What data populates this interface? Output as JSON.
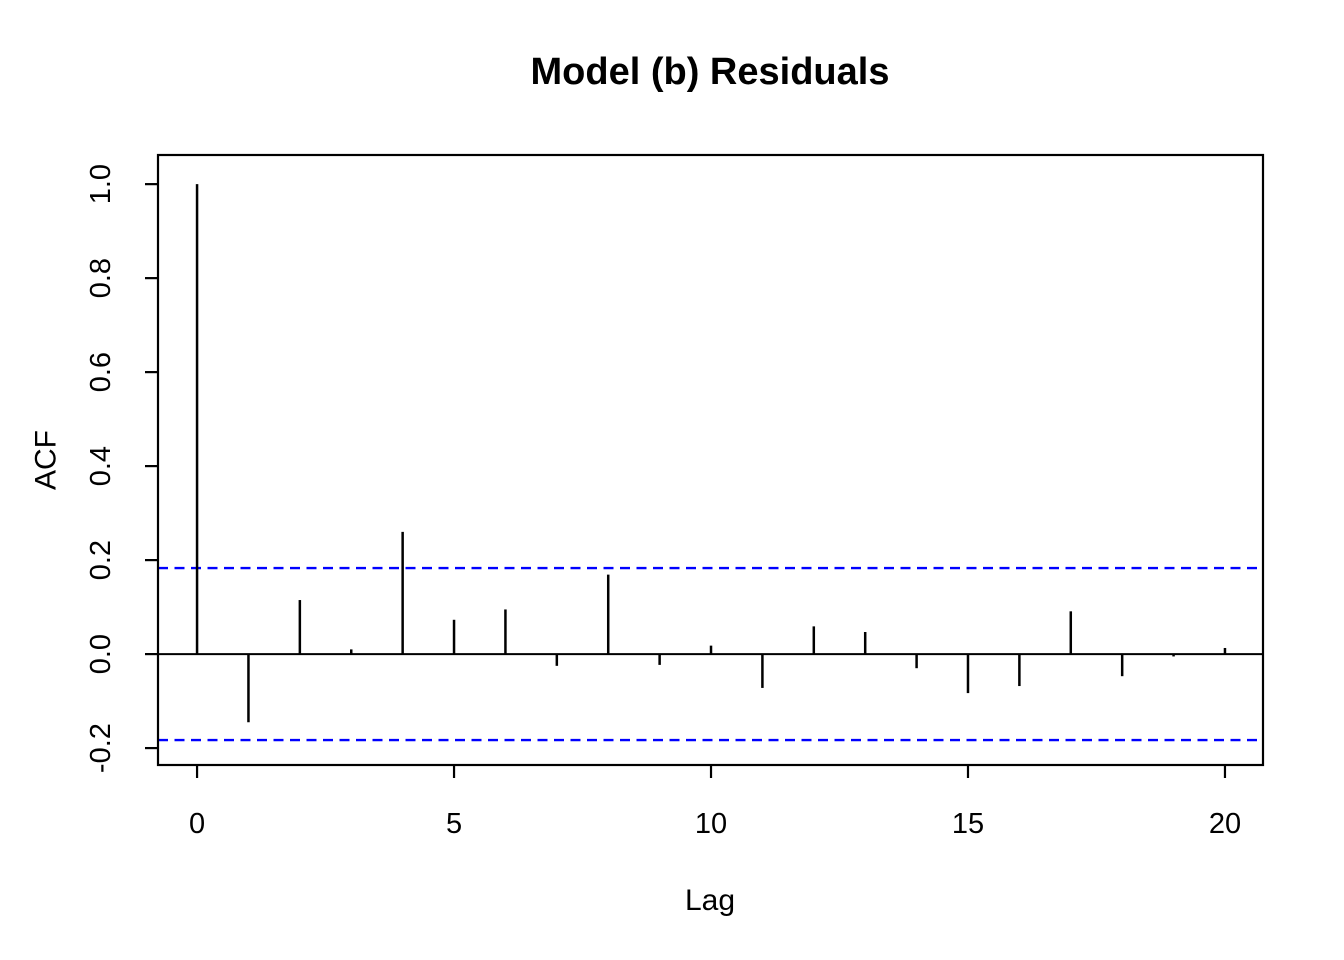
{
  "chart_data": {
    "type": "bar",
    "subtype": "acf-stem-plot",
    "title": "Model (b) Residuals",
    "xlabel": "Lag",
    "ylabel": "ACF",
    "x": [
      0,
      1,
      2,
      3,
      4,
      5,
      6,
      7,
      8,
      9,
      10,
      11,
      12,
      13,
      14,
      15,
      16,
      17,
      18,
      19,
      20
    ],
    "values": [
      1.0,
      -0.145,
      0.115,
      0.01,
      0.26,
      0.073,
      0.095,
      -0.025,
      0.169,
      -0.023,
      0.018,
      -0.072,
      0.059,
      0.047,
      -0.03,
      -0.083,
      -0.068,
      0.091,
      -0.047,
      -0.005,
      0.013
    ],
    "confidence_bounds": {
      "upper": 0.183,
      "lower": -0.183,
      "line_style": "dashed",
      "color": "#0000FF"
    },
    "xticks": [
      0,
      5,
      10,
      15,
      20
    ],
    "yticks": [
      -0.2,
      0.0,
      0.2,
      0.4,
      0.6,
      0.8,
      1.0
    ],
    "xlim": [
      -0.76,
      20.74
    ],
    "ylim": [
      -0.236,
      1.062
    ],
    "grid": false,
    "legend": null,
    "colors": {
      "spike": "#000000",
      "axis": "#000000",
      "zero_line": "#000000",
      "confidence": "#0000FF",
      "background": "#FFFFFF",
      "title": "#000000"
    }
  }
}
